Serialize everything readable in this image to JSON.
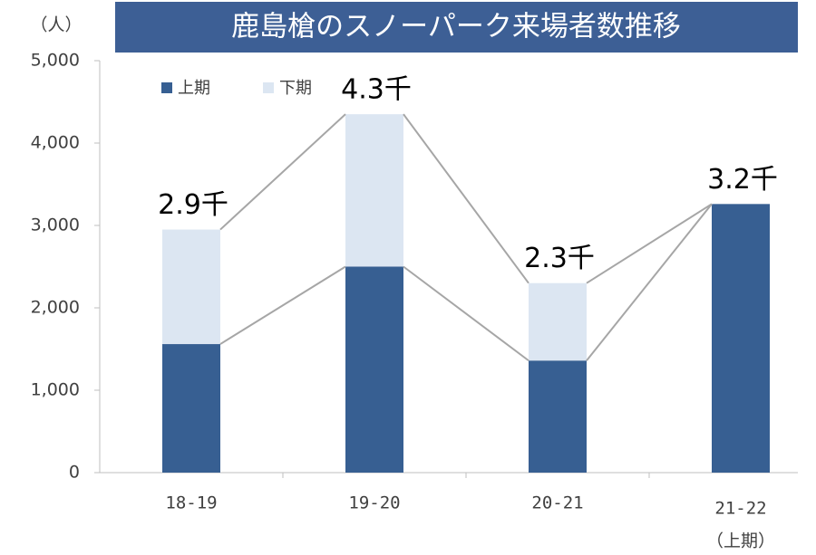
{
  "chart_data": {
    "type": "stacked_bar",
    "title": "鹿島槍のスノーパーク来場者数推移",
    "y_label": "（人）",
    "categories": [
      "18-19",
      "19-20",
      "20-21",
      "21-22"
    ],
    "category_note": "（上期）",
    "series": [
      {
        "name": "上期",
        "color": "#375f92",
        "values": [
          1560,
          2500,
          1360,
          3260
        ]
      },
      {
        "name": "下期",
        "color": "#dce6f2",
        "values": [
          1390,
          1850,
          940,
          null
        ]
      }
    ],
    "totals": {
      "values": [
        2900,
        4300,
        2300,
        3200
      ],
      "value_labels": [
        "2.9千",
        "4.3千",
        "2.3千",
        "3.2千"
      ]
    },
    "ylim": [
      0,
      5000
    ],
    "yticks": [
      0,
      {
        "value": 1000,
        "label": "1,000"
      },
      {
        "value": 2000,
        "label": "2,000"
      },
      {
        "value": 3000,
        "label": "3,000"
      },
      {
        "value": 4000,
        "label": "4,000"
      },
      {
        "value": 5000,
        "label": "5,000"
      }
    ],
    "connector_lines": true,
    "legend": "top-left"
  }
}
